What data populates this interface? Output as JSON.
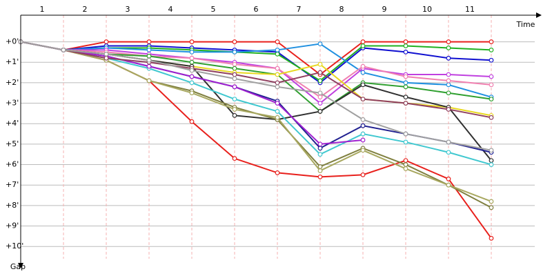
{
  "chart_data": {
    "type": "line",
    "x_label": "Time",
    "y_label": "Gap",
    "x": [
      0,
      1,
      2,
      3,
      4,
      5,
      6,
      7,
      8,
      9,
      10,
      11
    ],
    "xlim": [
      0,
      12
    ],
    "xticks": [
      {
        "value": 0.5,
        "label": "1"
      },
      {
        "value": 1.5,
        "label": "2"
      },
      {
        "value": 2.5,
        "label": "3"
      },
      {
        "value": 3.5,
        "label": "4"
      },
      {
        "value": 4.5,
        "label": "5"
      },
      {
        "value": 5.5,
        "label": "6"
      },
      {
        "value": 6.5,
        "label": "7"
      },
      {
        "value": 7.5,
        "label": "8"
      },
      {
        "value": 8.5,
        "label": "9"
      },
      {
        "value": 9.5,
        "label": "10"
      },
      {
        "value": 10.5,
        "label": "11"
      }
    ],
    "ylim": [
      -1.3,
      10.6
    ],
    "yticks": [
      {
        "value": 0,
        "label": "+0'"
      },
      {
        "value": 1,
        "label": "+1'"
      },
      {
        "value": 2,
        "label": "+2'"
      },
      {
        "value": 3,
        "label": "+3'"
      },
      {
        "value": 4,
        "label": "+4'"
      },
      {
        "value": 5,
        "label": "+5'"
      },
      {
        "value": 6,
        "label": "+6'"
      },
      {
        "value": 7,
        "label": "+7'"
      },
      {
        "value": 8,
        "label": "+8'"
      },
      {
        "value": 9,
        "label": "+9'"
      },
      {
        "value": 10,
        "label": "+10'"
      }
    ],
    "grid": true,
    "series": [
      {
        "color": "#e8201c",
        "values": [
          0,
          0.4,
          0,
          0,
          0,
          0,
          0,
          1.6,
          0,
          0,
          0,
          0
        ]
      },
      {
        "color": "#e8201c",
        "values": [
          0,
          0.4,
          0.9,
          1.9,
          3.9,
          5.7,
          6.4,
          6.6,
          6.5,
          5.8,
          6.7,
          9.6
        ]
      },
      {
        "color": "#1010d0",
        "values": [
          0,
          0.4,
          0.2,
          0.2,
          0.3,
          0.4,
          0.5,
          2.0,
          0.3,
          0.5,
          0.8,
          0.9
        ]
      },
      {
        "color": "#20b020",
        "values": [
          0,
          0.4,
          0.3,
          0.3,
          0.4,
          0.5,
          0.6,
          1.9,
          0.2,
          0.2,
          0.3,
          0.4
        ]
      },
      {
        "color": "#2090e0",
        "values": [
          0,
          0.4,
          0.3,
          0.4,
          0.5,
          0.5,
          0.4,
          0.1,
          1.5,
          2.0,
          2.1,
          2.7
        ]
      },
      {
        "color": "#c040e0",
        "values": [
          0,
          0.4,
          0.4,
          0.6,
          0.8,
          1.0,
          1.3,
          3.0,
          1.3,
          1.6,
          1.6,
          1.7
        ]
      },
      {
        "color": "#f080b0",
        "values": [
          0,
          0.4,
          0.5,
          0.7,
          0.8,
          1.1,
          1.3,
          2.7,
          1.2,
          1.7,
          1.9,
          2.1
        ]
      },
      {
        "color": "#30a030",
        "values": [
          0,
          0.4,
          0.6,
          0.7,
          1.0,
          1.3,
          1.6,
          3.4,
          2.0,
          2.2,
          2.5,
          2.8
        ]
      },
      {
        "color": "#e8d820",
        "values": [
          0,
          0.4,
          0.6,
          0.9,
          1.2,
          1.5,
          1.6,
          1.1,
          2.8,
          3.0,
          3.2,
          3.6
        ]
      },
      {
        "color": "#303030",
        "values": [
          0,
          0.4,
          0.6,
          0.9,
          1.2,
          3.6,
          3.8,
          3.4,
          2.1,
          2.7,
          3.2,
          5.8
        ]
      },
      {
        "color": "#202090",
        "values": [
          0,
          0.4,
          0.7,
          1.2,
          1.7,
          2.2,
          2.9,
          5.2,
          4.1,
          4.5,
          4.9,
          5.4
        ]
      },
      {
        "color": "#40c8d0",
        "values": [
          0,
          0.4,
          0.8,
          1.3,
          2.0,
          2.8,
          3.4,
          5.5,
          4.5,
          4.9,
          5.4,
          6.0
        ]
      },
      {
        "color": "#808040",
        "values": [
          0,
          0.4,
          0.9,
          1.9,
          2.4,
          3.2,
          3.8,
          6.1,
          5.2,
          6.0,
          7.0,
          8.1
        ]
      },
      {
        "color": "#a8a860",
        "values": [
          0,
          0.4,
          0.9,
          1.9,
          2.5,
          3.3,
          3.7,
          6.3,
          5.3,
          6.2,
          7.0,
          7.8
        ]
      },
      {
        "color": "#a020d0",
        "values": [
          0,
          0.4,
          0.7,
          1.2,
          1.7,
          2.2,
          3.0,
          5.0,
          4.8,
          null,
          null,
          null
        ]
      },
      {
        "color": "#904060",
        "values": [
          0,
          0.4,
          0.8,
          1.0,
          1.3,
          1.6,
          2.0,
          1.5,
          2.8,
          3.0,
          3.3,
          3.7
        ]
      },
      {
        "color": "#a0a0a0",
        "values": [
          0,
          0.4,
          0.6,
          0.9,
          1.4,
          1.8,
          2.2,
          2.5,
          3.8,
          4.5,
          4.9,
          5.3
        ]
      }
    ]
  }
}
